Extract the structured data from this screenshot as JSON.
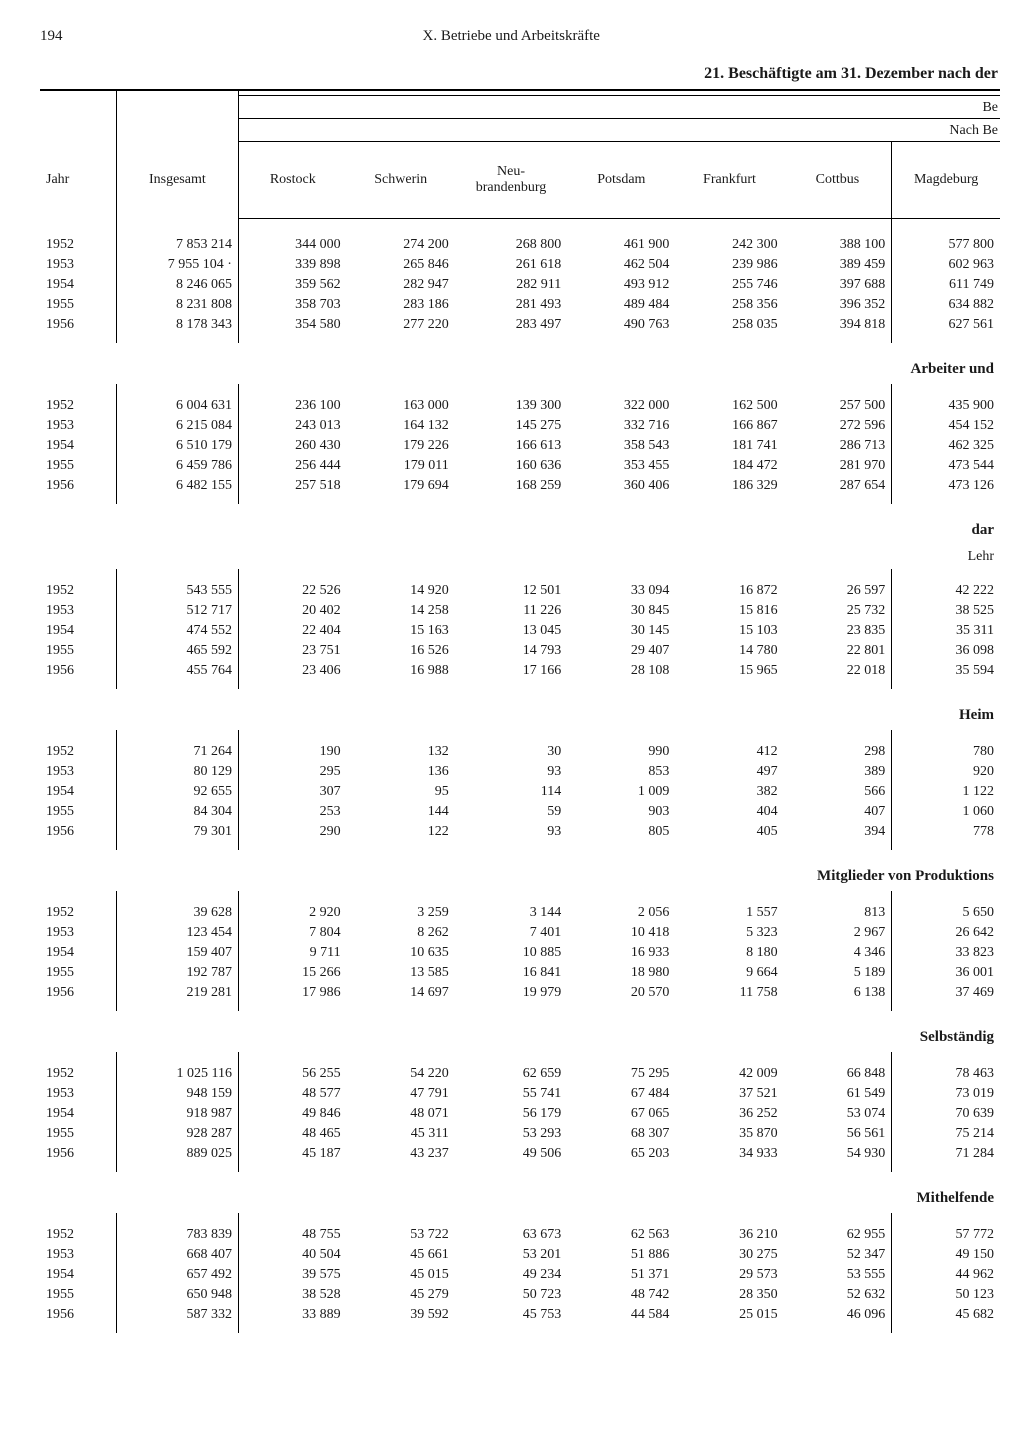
{
  "page_number": "194",
  "chapter": "X. Betriebe und Arbeitskräfte",
  "table_title": "21. Beschäftigte am 31. Dezember nach der",
  "header_right_frag1": "Be",
  "header_right_frag2": "Nach Be",
  "columns": {
    "jahr": "Jahr",
    "insgesamt": "Insgesamt",
    "rostock": "Rostock",
    "schwerin": "Schwerin",
    "neubrandenburg": "Neu-\nbrandenburg",
    "potsdam": "Potsdam",
    "frankfurt": "Frankfurt",
    "cottbus": "Cottbus",
    "magdeburg": "Magdeburg"
  },
  "sections": [
    {
      "label": "",
      "sub": "",
      "rows": [
        [
          "1952",
          "7 853 214",
          "344 000",
          "274 200",
          "268 800",
          "461 900",
          "242 300",
          "388 100",
          "577 800"
        ],
        [
          "1953",
          "7 955 104 ·",
          "339 898",
          "265 846",
          "261 618",
          "462 504",
          "239 986",
          "389 459",
          "602 963"
        ],
        [
          "1954",
          "8 246 065",
          "359 562",
          "282 947",
          "282 911",
          "493 912",
          "255 746",
          "397 688",
          "611 749"
        ],
        [
          "1955",
          "8 231 808",
          "358 703",
          "283 186",
          "281 493",
          "489 484",
          "258 356",
          "396 352",
          "634 882"
        ],
        [
          "1956",
          "8 178 343",
          "354 580",
          "277 220",
          "283 497",
          "490 763",
          "258 035",
          "394 818",
          "627 561"
        ]
      ]
    },
    {
      "label": "Arbeiter und",
      "sub": "",
      "rows": [
        [
          "1952",
          "6 004 631",
          "236 100",
          "163 000",
          "139 300",
          "322 000",
          "162 500",
          "257 500",
          "435 900"
        ],
        [
          "1953",
          "6 215 084",
          "243 013",
          "164 132",
          "145 275",
          "332 716",
          "166 867",
          "272 596",
          "454 152"
        ],
        [
          "1954",
          "6 510 179",
          "260 430",
          "179 226",
          "166 613",
          "358 543",
          "181 741",
          "286 713",
          "462 325"
        ],
        [
          "1955",
          "6 459 786",
          "256 444",
          "179 011",
          "160 636",
          "353 455",
          "184 472",
          "281 970",
          "473 544"
        ],
        [
          "1956",
          "6 482 155",
          "257 518",
          "179 694",
          "168 259",
          "360 406",
          "186 329",
          "287 654",
          "473 126"
        ]
      ]
    },
    {
      "label": "dar",
      "sub": "Lehr",
      "rows": [
        [
          "1952",
          "543 555",
          "22 526",
          "14 920",
          "12 501",
          "33 094",
          "16 872",
          "26 597",
          "42 222"
        ],
        [
          "1953",
          "512 717",
          "20 402",
          "14 258",
          "11 226",
          "30 845",
          "15 816",
          "25 732",
          "38 525"
        ],
        [
          "1954",
          "474 552",
          "22 404",
          "15 163",
          "13 045",
          "30 145",
          "15 103",
          "23 835",
          "35 311"
        ],
        [
          "1955",
          "465 592",
          "23 751",
          "16 526",
          "14 793",
          "29 407",
          "14 780",
          "22 801",
          "36 098"
        ],
        [
          "1956",
          "455 764",
          "23 406",
          "16 988",
          "17 166",
          "28 108",
          "15 965",
          "22 018",
          "35 594"
        ]
      ]
    },
    {
      "label": "Heim",
      "sub": "",
      "rows": [
        [
          "1952",
          "71 264",
          "190",
          "132",
          "30",
          "990",
          "412",
          "298",
          "780"
        ],
        [
          "1953",
          "80 129",
          "295",
          "136",
          "93",
          "853",
          "497",
          "389",
          "920"
        ],
        [
          "1954",
          "92 655",
          "307",
          "95",
          "114",
          "1 009",
          "382",
          "566",
          "1 122"
        ],
        [
          "1955",
          "84 304",
          "253",
          "144",
          "59",
          "903",
          "404",
          "407",
          "1 060"
        ],
        [
          "1956",
          "79 301",
          "290",
          "122",
          "93",
          "805",
          "405",
          "394",
          "778"
        ]
      ]
    },
    {
      "label": "Mitglieder von Produktions",
      "sub": "",
      "rows": [
        [
          "1952",
          "39 628",
          "2 920",
          "3 259",
          "3 144",
          "2 056",
          "1 557",
          "813",
          "5 650"
        ],
        [
          "1953",
          "123 454",
          "7 804",
          "8 262",
          "7 401",
          "10 418",
          "5 323",
          "2 967",
          "26 642"
        ],
        [
          "1954",
          "159 407",
          "9 711",
          "10 635",
          "10 885",
          "16 933",
          "8 180",
          "4 346",
          "33 823"
        ],
        [
          "1955",
          "192 787",
          "15 266",
          "13 585",
          "16 841",
          "18 980",
          "9 664",
          "5 189",
          "36 001"
        ],
        [
          "1956",
          "219 281",
          "17 986",
          "14 697",
          "19 979",
          "20 570",
          "11 758",
          "6 138",
          "37 469"
        ]
      ]
    },
    {
      "label": "Selbständig",
      "sub": "",
      "rows": [
        [
          "1952",
          "1 025 116",
          "56 255",
          "54 220",
          "62 659",
          "75 295",
          "42 009",
          "66 848",
          "78 463"
        ],
        [
          "1953",
          "948 159",
          "48 577",
          "47 791",
          "55 741",
          "67 484",
          "37 521",
          "61 549",
          "73 019"
        ],
        [
          "1954",
          "918 987",
          "49 846",
          "48 071",
          "56 179",
          "67 065",
          "36 252",
          "53 074",
          "70 639"
        ],
        [
          "1955",
          "928 287",
          "48 465",
          "45 311",
          "53 293",
          "68 307",
          "35 870",
          "56 561",
          "75 214"
        ],
        [
          "1956",
          "889 025",
          "45 187",
          "43 237",
          "49 506",
          "65 203",
          "34 933",
          "54 930",
          "71 284"
        ]
      ]
    },
    {
      "label": "Mithelfende",
      "sub": "",
      "rows": [
        [
          "1952",
          "783 839",
          "48 755",
          "53 722",
          "63 673",
          "62 563",
          "36 210",
          "62 955",
          "57 772"
        ],
        [
          "1953",
          "668 407",
          "40 504",
          "45 661",
          "53 201",
          "51 886",
          "30 275",
          "52 347",
          "49 150"
        ],
        [
          "1954",
          "657 492",
          "39 575",
          "45 015",
          "49 234",
          "51 371",
          "29 573",
          "53 555",
          "44 962"
        ],
        [
          "1955",
          "650 948",
          "38 528",
          "45 279",
          "50 723",
          "48 742",
          "28 350",
          "52 632",
          "50 123"
        ],
        [
          "1956",
          "587 332",
          "33 889",
          "39 592",
          "45 753",
          "44 584",
          "25 015",
          "46 096",
          "45 682"
        ]
      ]
    }
  ]
}
